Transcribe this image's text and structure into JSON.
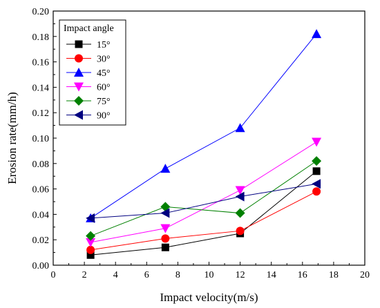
{
  "chart_data": {
    "type": "line",
    "xlabel": "Impact velocity(m/s)",
    "ylabel": "Erosion rate(mm/h)",
    "xlim": [
      0,
      20
    ],
    "ylim": [
      0,
      0.2
    ],
    "xticks": [
      "0",
      "2",
      "4",
      "6",
      "8",
      "10",
      "12",
      "14",
      "16",
      "18",
      "20"
    ],
    "yticks": [
      "0.00",
      "0.02",
      "0.04",
      "0.06",
      "0.08",
      "0.10",
      "0.12",
      "0.14",
      "0.16",
      "0.18",
      "0.20"
    ],
    "grid": false,
    "legend_title": "Impact angle",
    "legend_position": "top-left",
    "x": [
      2.4,
      7.2,
      12,
      16.9
    ],
    "series": [
      {
        "name": "15°",
        "values": [
          0.008,
          0.014,
          0.025,
          0.074
        ],
        "color": "#000000",
        "marker": "square"
      },
      {
        "name": "30°",
        "values": [
          0.012,
          0.021,
          0.027,
          0.058
        ],
        "color": "#ff0000",
        "marker": "circle"
      },
      {
        "name": "45°",
        "values": [
          0.037,
          0.076,
          0.108,
          0.182
        ],
        "color": "#0000ff",
        "marker": "triangle-up"
      },
      {
        "name": "60°",
        "values": [
          0.018,
          0.029,
          0.059,
          0.097
        ],
        "color": "#ff00ff",
        "marker": "triangle-down"
      },
      {
        "name": "75°",
        "values": [
          0.023,
          0.046,
          0.041,
          0.082
        ],
        "color": "#008000",
        "marker": "diamond"
      },
      {
        "name": "90°",
        "values": [
          0.037,
          0.041,
          0.054,
          0.064
        ],
        "color": "#000080",
        "marker": "triangle-left"
      }
    ]
  }
}
